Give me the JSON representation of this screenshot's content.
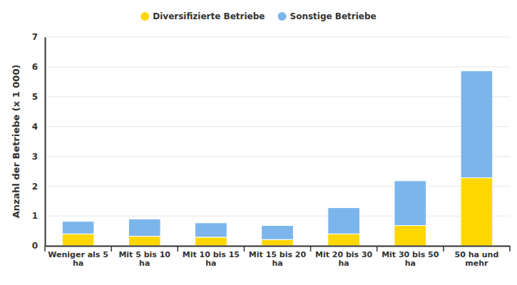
{
  "chart_data": {
    "type": "bar",
    "stacked": true,
    "grid": true,
    "legend": "top",
    "y_label": "Anzahl der Betriebe (x 1 000)",
    "categories": [
      "Weniger als 5 ha",
      "Mit 5 bis 10 ha",
      "Mit 10 bis 15 ha",
      "Mit 15 bis 20 ha",
      "Mit 20 bis 30 ha",
      "Mit 30 bis 50 ha",
      "50 ha und mehr"
    ],
    "series": [
      {
        "name": "Diversifizierte Betriebe",
        "color": "#ffd700",
        "values": [
          0.4,
          0.32,
          0.29,
          0.21,
          0.4,
          0.68,
          2.28
        ]
      },
      {
        "name": "Sonstige Betriebe",
        "color": "#7cb5ec",
        "values": [
          0.42,
          0.58,
          0.48,
          0.47,
          0.88,
          1.5,
          3.59
        ]
      }
    ],
    "ylim": [
      0,
      7
    ],
    "yticks": [
      0,
      1,
      2,
      3,
      4,
      5,
      6,
      7
    ]
  }
}
